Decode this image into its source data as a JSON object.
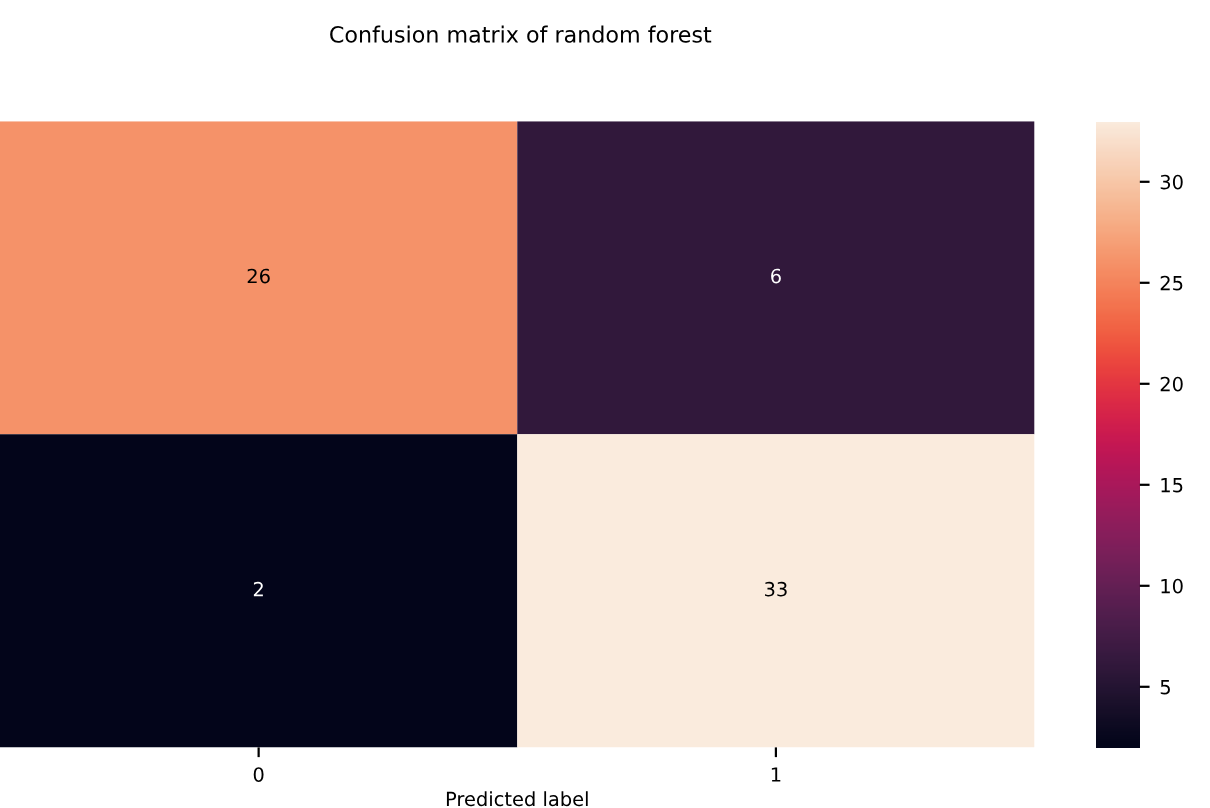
{
  "chart_data": {
    "type": "heatmap",
    "title": "Confusion matrix of random forest",
    "xlabel": "Predicted label",
    "categories": [
      "0",
      "1"
    ],
    "y_categories": [
      null,
      null
    ],
    "cells": [
      [
        26,
        6
      ],
      [
        2,
        33
      ]
    ],
    "data_labels": true,
    "clim": [
      2,
      33
    ],
    "cticks": [
      5,
      10,
      15,
      20,
      25,
      30
    ],
    "tick_labels": "x"
  }
}
